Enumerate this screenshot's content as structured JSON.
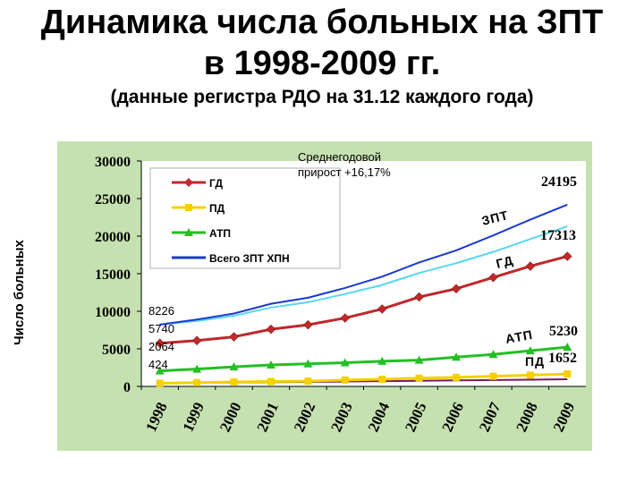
{
  "title_line1": "Динамика числа больных на ЗПТ",
  "title_line2": "в 1998-2009 гг.",
  "subtitle": "(данные регистра РДО на 31.12 каждого года)",
  "chart_data": {
    "type": "line",
    "ylabel": "Число больных",
    "ylim": [
      0,
      30000
    ],
    "yticks": [
      0,
      5000,
      10000,
      15000,
      20000,
      25000,
      30000
    ],
    "categories": [
      "1998",
      "1999",
      "2000",
      "2001",
      "2002",
      "2003",
      "2004",
      "2005",
      "2006",
      "2007",
      "2008",
      "2009"
    ],
    "series": [
      {
        "name": "ГД",
        "color": "#c0282a",
        "marker": "diamond",
        "values": [
          5740,
          6100,
          6600,
          7600,
          8200,
          9100,
          10300,
          11900,
          13000,
          14500,
          16000,
          17313
        ]
      },
      {
        "name": "ПД",
        "color": "#f5d000",
        "marker": "square",
        "values": [
          424,
          500,
          600,
          650,
          700,
          850,
          950,
          1100,
          1200,
          1350,
          1500,
          1652
        ]
      },
      {
        "name": "АТП",
        "color": "#22c022",
        "marker": "triangle",
        "values": [
          2064,
          2300,
          2600,
          2850,
          3000,
          3150,
          3350,
          3500,
          3900,
          4250,
          4750,
          5230
        ]
      },
      {
        "name": "Всего ЗПТ ХПН",
        "color": "#1a3ad0",
        "marker": "none",
        "values": [
          8226,
          8900,
          9700,
          11000,
          11800,
          13100,
          14600,
          16500,
          18100,
          20100,
          22200,
          24195
        ]
      }
    ],
    "extra_lines": [
      {
        "color": "#7a1a5a",
        "values": [
          424,
          480,
          520,
          560,
          600,
          650,
          700,
          750,
          800,
          850,
          900,
          950
        ]
      },
      {
        "color": "#55d8f0",
        "values": [
          8226,
          8700,
          9400,
          10500,
          11200,
          12300,
          13500,
          15100,
          16400,
          17900,
          19600,
          21300
        ]
      }
    ],
    "annotations": {
      "growth_line1": "Среднегодовой",
      "growth_line2": "прирост +16,17%",
      "start_values": [
        "8226",
        "5740",
        "2064",
        "424"
      ],
      "label_zpt": "ЗПТ",
      "label_gd": "ГД",
      "label_atp": "АТП",
      "label_pd": "ПД",
      "end_total": "24195",
      "end_gd": "17313",
      "end_atp": "5230",
      "end_pd": "1652"
    },
    "grid": false,
    "legend_position": "top-left"
  }
}
